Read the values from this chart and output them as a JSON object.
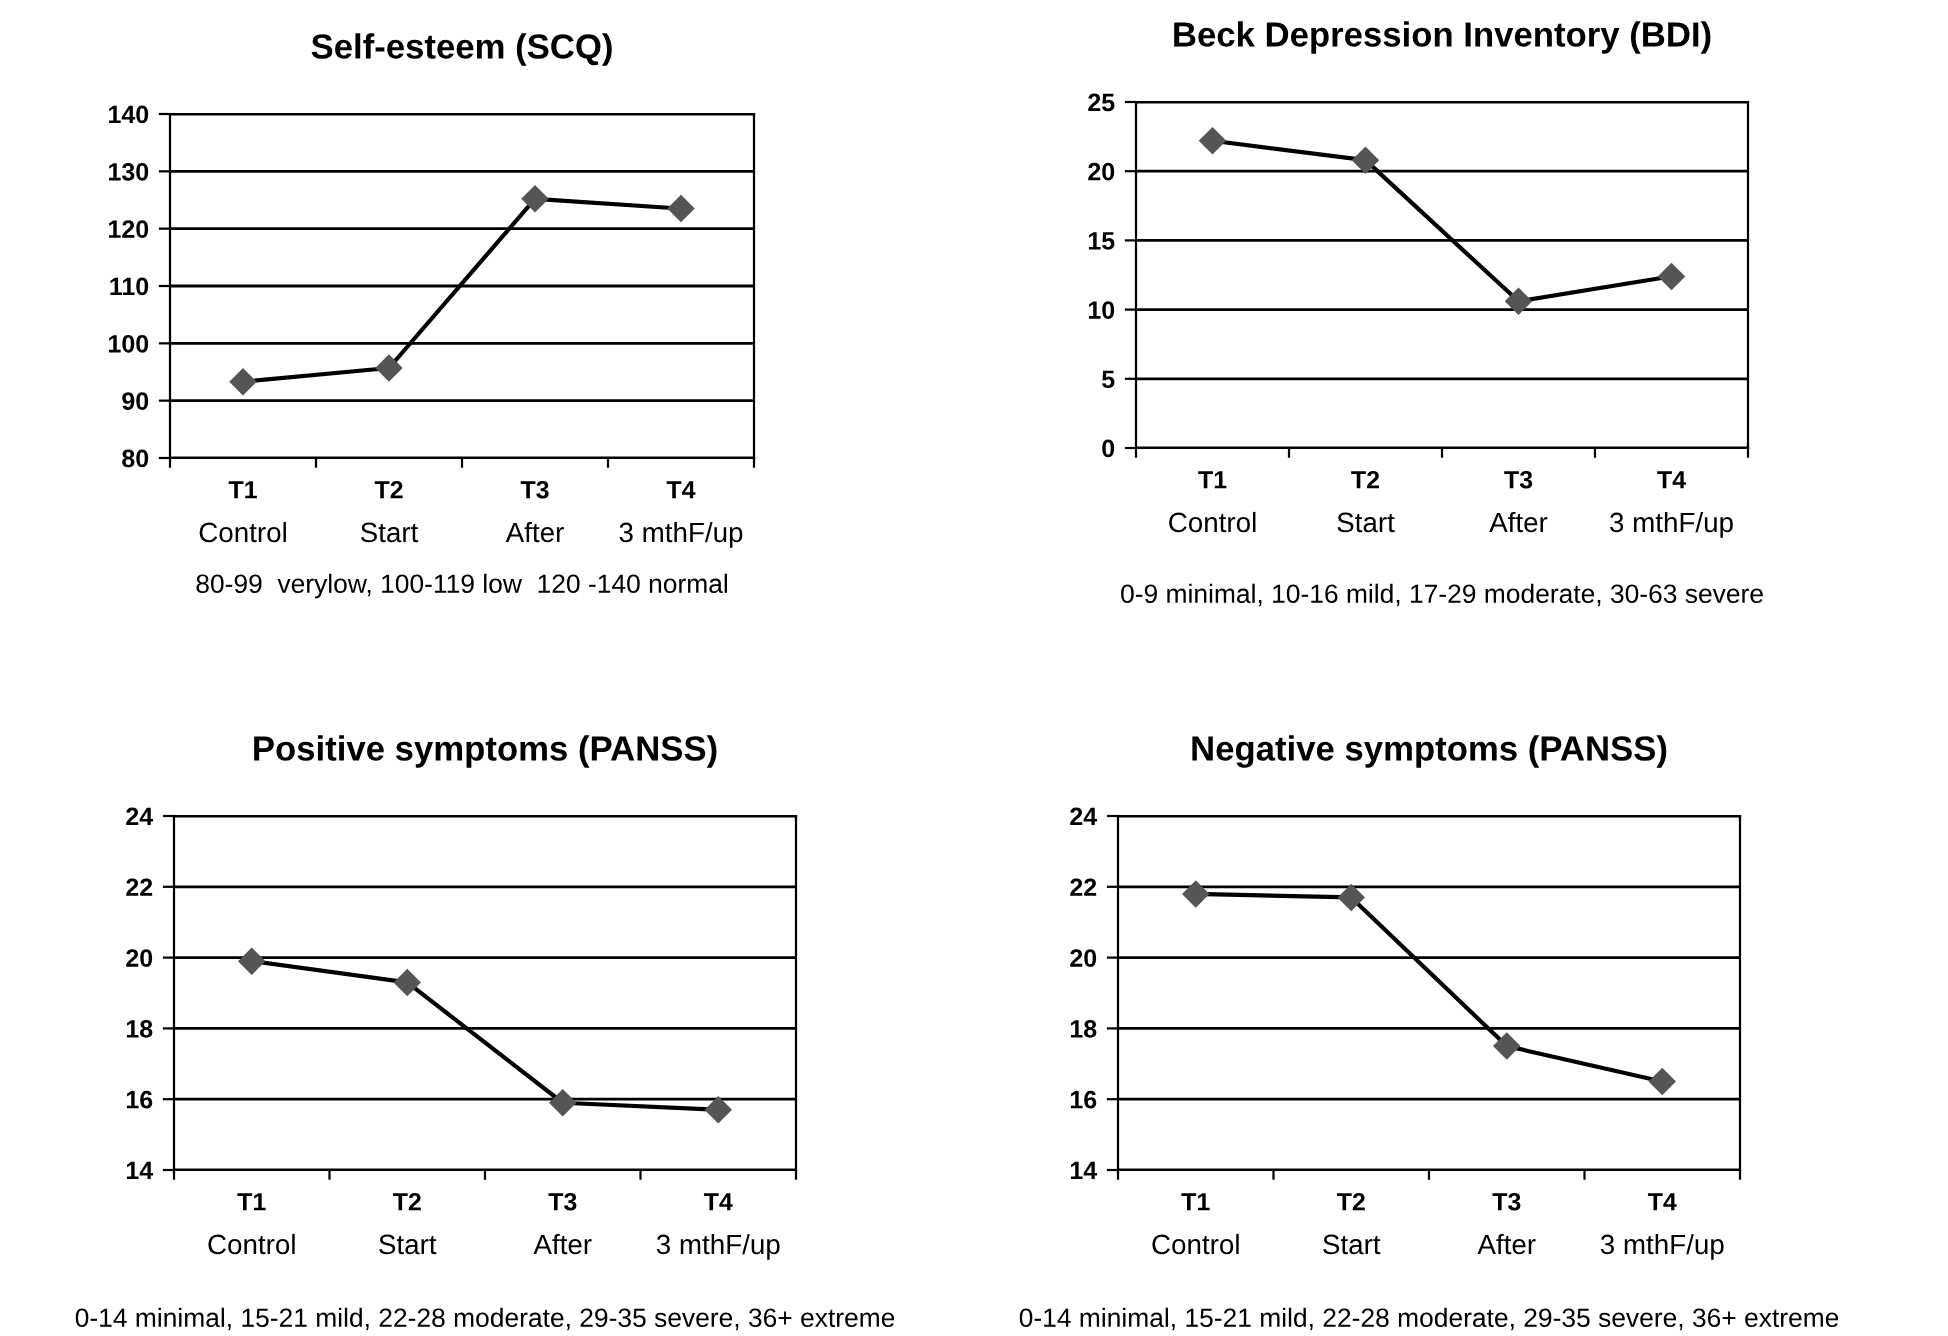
{
  "chart_data": [
    {
      "type": "line",
      "title": "Self-esteem (SCQ)",
      "categories": [
        "T1\nControl",
        "T2\nStart",
        "T3\nAfter",
        "T4\n3 mthF/up"
      ],
      "series": [
        {
          "color": "#000000",
          "values": [
            93.3,
            95.7,
            125.2,
            123.5
          ]
        }
      ],
      "ylim": [
        80,
        140
      ],
      "yticks": [
        80,
        90,
        100,
        110,
        120,
        130,
        140
      ],
      "grid": "y",
      "marker": "diamond",
      "annotations": [
        "80-99  verylow, 100-119 low  120 -140 normal"
      ]
    },
    {
      "type": "line",
      "title": "Beck Depression Inventory (BDI)",
      "categories": [
        "T1\nControl",
        "T2\nStart",
        "T3\nAfter",
        "T4\n3 mthF/up"
      ],
      "series": [
        {
          "color": "#000000",
          "values": [
            22.2,
            20.8,
            10.6,
            12.4
          ]
        }
      ],
      "ylim": [
        0,
        25
      ],
      "yticks": [
        0,
        5,
        10,
        15,
        20,
        25
      ],
      "grid": "y",
      "marker": "diamond",
      "annotations": [
        "0-9 minimal, 10-16 mild, 17-29 moderate, 30-63 severe"
      ]
    },
    {
      "type": "line",
      "title": "Positive symptoms (PANSS)",
      "categories": [
        "T1\nControl",
        "T2\nStart",
        "T3\nAfter",
        "T4\n3 mthF/up"
      ],
      "series": [
        {
          "color": "#000000",
          "values": [
            19.9,
            19.3,
            15.9,
            15.7
          ]
        }
      ],
      "ylim": [
        14,
        24
      ],
      "yticks": [
        14,
        16,
        18,
        20,
        22,
        24
      ],
      "grid": "y",
      "marker": "diamond",
      "annotations": [
        "0-14 minimal, 15-21 mild, 22-28 moderate, 29-35 severe, 36+ extreme"
      ]
    },
    {
      "type": "line",
      "title": "Negative symptoms (PANSS)",
      "categories": [
        "T1\nControl",
        "T2\nStart",
        "T3\nAfter",
        "T4\n3 mthF/up"
      ],
      "series": [
        {
          "color": "#000000",
          "values": [
            21.8,
            21.7,
            17.5,
            16.5
          ]
        }
      ],
      "ylim": [
        14,
        24
      ],
      "yticks": [
        14,
        16,
        18,
        20,
        22,
        24
      ],
      "grid": "y",
      "marker": "diamond",
      "annotations": [
        "0-14 minimal, 15-21 mild, 22-28 moderate, 29-35 severe, 36+ extreme"
      ]
    }
  ]
}
